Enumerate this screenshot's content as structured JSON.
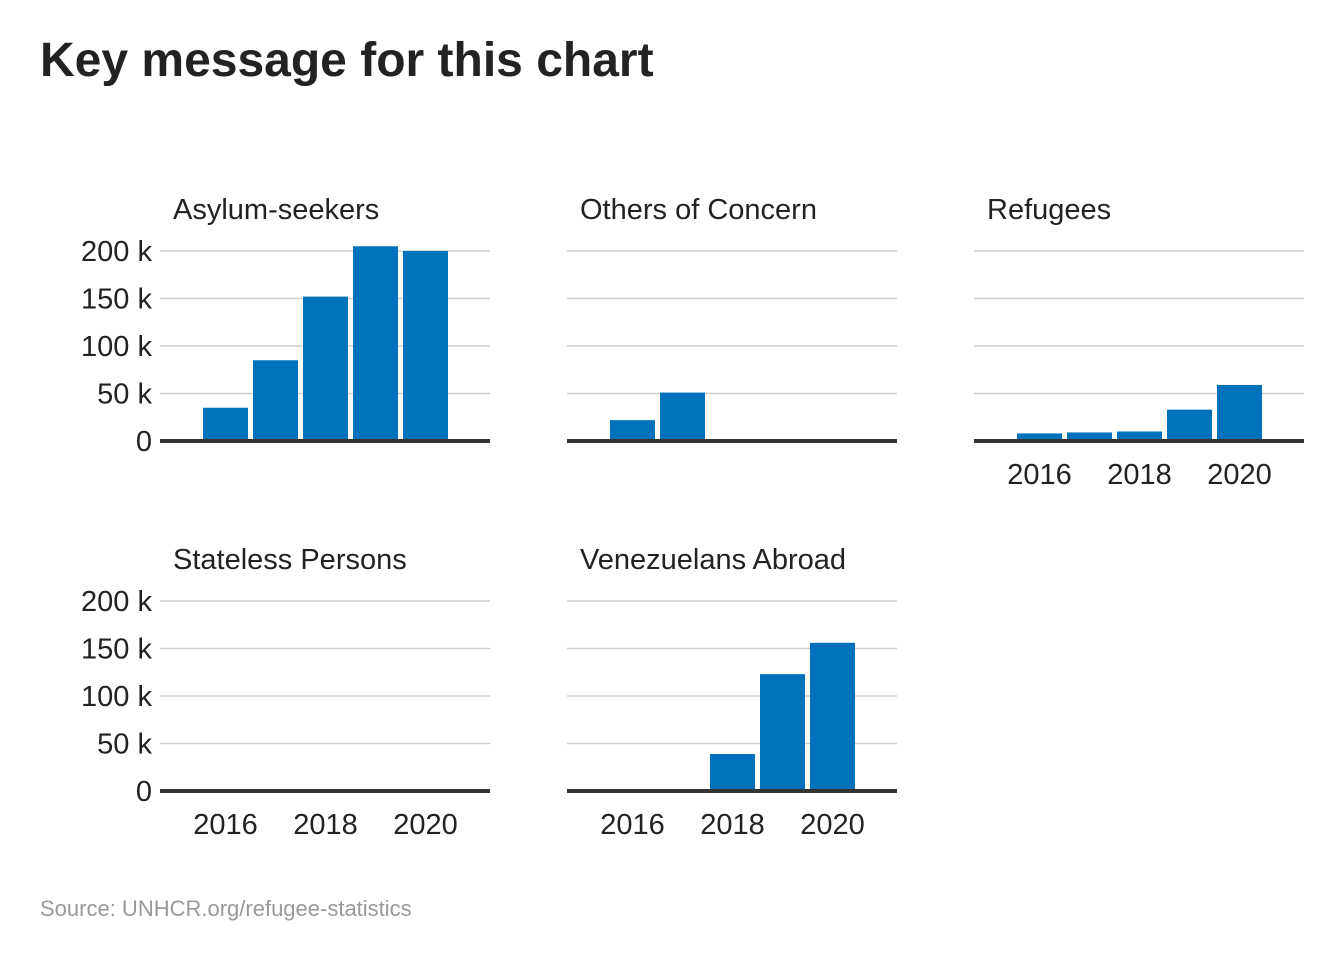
{
  "title": "Key message for this chart",
  "source": "Source: UNHCR.org/refugee-statistics",
  "colors": {
    "bar": "#0072bc",
    "grid": "#cfcfcf",
    "baseline": "#333333",
    "text": "#222222",
    "source": "#999999"
  },
  "chart_data": {
    "type": "bar",
    "layout": "small-multiples",
    "x": [
      2016,
      2017,
      2018,
      2019,
      2020
    ],
    "x_tick_labels": [
      "2016",
      "2018",
      "2020"
    ],
    "ylim": [
      0,
      200000
    ],
    "y_ticks": [
      0,
      50000,
      100000,
      150000,
      200000
    ],
    "y_tick_labels": [
      "0",
      "50 k",
      "100 k",
      "150 k",
      "200 k"
    ],
    "grid": true,
    "legend": "none",
    "panels": [
      {
        "name": "Asylum-seekers",
        "values": [
          35000,
          85000,
          152000,
          205000,
          200000
        ]
      },
      {
        "name": "Others of Concern",
        "values": [
          22000,
          51000,
          0,
          0,
          0
        ]
      },
      {
        "name": "Refugees",
        "values": [
          8000,
          9000,
          10000,
          33000,
          59000
        ]
      },
      {
        "name": "Stateless Persons",
        "values": [
          0,
          0,
          0,
          0,
          0
        ]
      },
      {
        "name": "Venezuelans Abroad",
        "values": [
          0,
          0,
          39000,
          123000,
          156000
        ]
      }
    ]
  }
}
